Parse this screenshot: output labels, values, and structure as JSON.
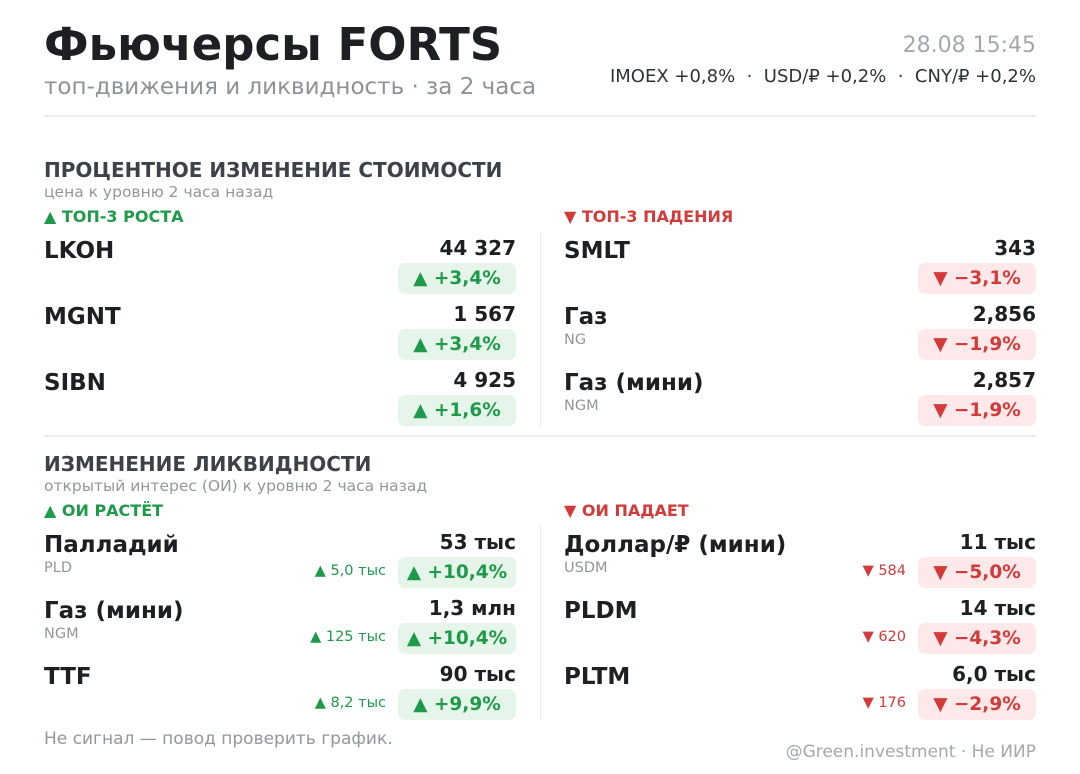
{
  "header": {
    "title": "Фьючерсы FORTS",
    "subtitle": "топ-движения и ликвидность · за 2 часа",
    "datetime": "28.08 15:45",
    "market": "IMOEX +0,8%  ·  USD/₽ +0,2%  ·  CNY/₽ +0,2%"
  },
  "price": {
    "title": "ПРОЦЕНТНОЕ ИЗМЕНЕНИЕ СТОИМОСТИ",
    "subtitle": "цена к уровню 2 часа назад",
    "gainers": {
      "label": "▲ ТОП-3 РОСТА",
      "rows": [
        {
          "name": "LKOH",
          "value": "44 327",
          "change": "▲ +3,4%"
        },
        {
          "name": "MGNT",
          "value": "1 567",
          "change": "▲ +3,4%"
        },
        {
          "name": "SIBN",
          "value": "4 925",
          "change": "▲ +1,6%"
        }
      ]
    },
    "losers": {
      "label": "▼ ТОП-3 ПАДЕНИЯ",
      "rows": [
        {
          "name": "SMLT",
          "value": "343",
          "change": "▼ −3,1%"
        },
        {
          "name": "Газ",
          "code": "NG",
          "value": "2,856",
          "change": "▼ −1,9%"
        },
        {
          "name": "Газ (мини)",
          "code": "NGM",
          "value": "2,857",
          "change": "▼ −1,9%"
        }
      ]
    }
  },
  "liquidity": {
    "title": "ИЗМЕНЕНИЕ ЛИКВИДНОСТИ",
    "subtitle": "открытый интерес (ОИ) к уровню 2 часа назад",
    "gainers": {
      "label": "▲ ОИ РАСТЁТ",
      "rows": [
        {
          "name": "Палладий",
          "code": "PLD",
          "value": "53 тыс",
          "delta": "▲ 5,0 тыс",
          "change": "▲ +10,4%"
        },
        {
          "name": "Газ (мини)",
          "code": "NGM",
          "value": "1,3 млн",
          "delta": "▲ 125 тыс",
          "change": "▲ +10,4%"
        },
        {
          "name": "TTF",
          "value": "90 тыс",
          "delta": "▲ 8,2 тыс",
          "change": "▲ +9,9%"
        }
      ]
    },
    "losers": {
      "label": "▼ ОИ ПАДАЕТ",
      "rows": [
        {
          "name": "Доллар/₽ (мини)",
          "code": "USDM",
          "value": "11 тыс",
          "delta": "▼ 584",
          "change": "▼ −5,0%"
        },
        {
          "name": "PLDM",
          "value": "14 тыс",
          "delta": "▼ 620",
          "change": "▼ −4,3%"
        },
        {
          "name": "PLTM",
          "value": "6,0 тыс",
          "delta": "▼ 176",
          "change": "▼ −2,9%"
        }
      ]
    }
  },
  "footer": {
    "note": "Не сигнал — повод проверить график.",
    "credit": "@Green.investment · Не ИИР"
  }
}
